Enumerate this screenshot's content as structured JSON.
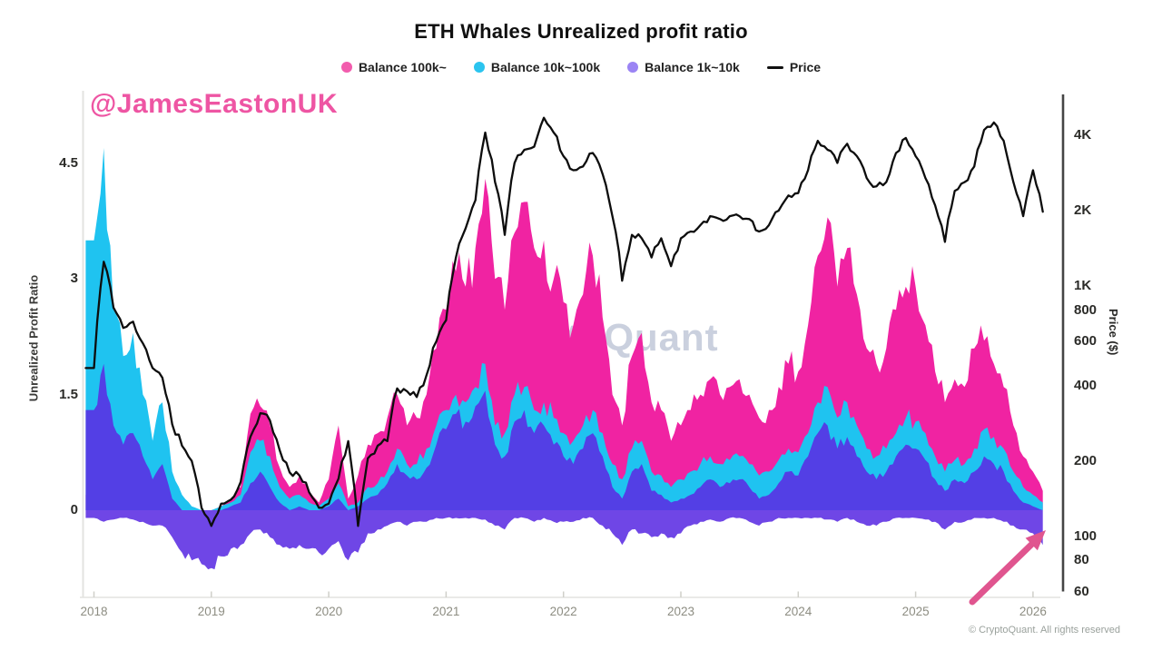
{
  "title": "ETH Whales Unrealized profit ratio",
  "handle": "@JamesEastonUK",
  "watermark": "CryptoQuant",
  "footer": "© CryptoQuant. All rights reserved",
  "legend": [
    {
      "label": "Balance 100k~",
      "color": "#f25cad",
      "marker": "dot"
    },
    {
      "label": "Balance 10k~100k",
      "color": "#2bc4ef",
      "marker": "dot"
    },
    {
      "label": "Balance 1k~10k",
      "color": "#9b84f4",
      "marker": "dot"
    },
    {
      "label": "Price",
      "color": "#111111",
      "marker": "line"
    }
  ],
  "annotation": {
    "shape": "arrow",
    "color": "#e0558f"
  },
  "colors": {
    "background": "#ffffff",
    "axis_light": "#e3e3e0",
    "axis_dark": "#454545",
    "year_tick": "#cfcfc9"
  },
  "chart_data": {
    "type": "area",
    "title": "ETH Whales Unrealized profit ratio",
    "x_start": 2018.0,
    "x_step_years": 0.0833333,
    "x_ticks": [
      2018,
      2019,
      2020,
      2021,
      2022,
      2023,
      2024,
      2025,
      2026
    ],
    "left_axis": {
      "label": "Unrealized Profit Ratio",
      "ticks": [
        0,
        1.5,
        3,
        4.5
      ],
      "range": [
        -1.1,
        5.4
      ]
    },
    "right_axis": {
      "label": "Price ($)",
      "scale": "log",
      "ticks": [
        {
          "v": 60,
          "label": "60"
        },
        {
          "v": 80,
          "label": "80"
        },
        {
          "v": 100,
          "label": "100"
        },
        {
          "v": 200,
          "label": "200"
        },
        {
          "v": 400,
          "label": "400"
        },
        {
          "v": 600,
          "label": "600"
        },
        {
          "v": 800,
          "label": "800"
        },
        {
          "v": 1000,
          "label": "1K"
        },
        {
          "v": 2000,
          "label": "2K"
        },
        {
          "v": 4000,
          "label": "4K"
        }
      ],
      "range": [
        55,
        5600
      ]
    },
    "series": [
      {
        "name": "Balance 100k~",
        "kind": "area",
        "color": "#f023a2",
        "baseline": 0,
        "values": [
          0.2,
          0.5,
          0.45,
          0.35,
          1.1,
          1.5,
          0.6,
          0.35,
          0.15,
          0.05,
          0,
          0,
          0,
          0.05,
          0.15,
          0.3,
          1.25,
          1.35,
          1.1,
          0.55,
          0.3,
          0.45,
          0.25,
          0.1,
          0.4,
          1.1,
          0.15,
          0.45,
          0.85,
          1.0,
          1.2,
          1.5,
          1.1,
          1.2,
          1.5,
          2.1,
          2.6,
          3.1,
          2.9,
          3.4,
          4.3,
          3.0,
          2.6,
          3.6,
          4.0,
          3.4,
          3.5,
          3.0,
          2.7,
          2.4,
          2.8,
          3.3,
          2.5,
          1.5,
          1.1,
          2.0,
          2.3,
          1.4,
          1.3,
          0.9,
          1.1,
          1.3,
          1.5,
          1.7,
          1.5,
          1.6,
          1.7,
          1.5,
          1.2,
          1.3,
          1.6,
          1.9,
          1.8,
          2.4,
          3.3,
          3.8,
          2.9,
          3.4,
          2.8,
          2.1,
          1.9,
          2.1,
          2.6,
          2.9,
          2.9,
          2.4,
          1.8,
          1.4,
          1.7,
          1.6,
          2.1,
          2.2,
          1.9,
          1.6,
          1.1,
          0.7,
          0.5,
          0.25
        ]
      },
      {
        "name": "Balance 10k~100k",
        "kind": "area",
        "color": "#1fc3f0",
        "baseline": 0,
        "values": [
          3.5,
          4.7,
          2.6,
          2.0,
          2.3,
          1.5,
          0.9,
          1.4,
          0.5,
          0.2,
          0.05,
          0,
          0,
          0.05,
          0.1,
          0.2,
          0.75,
          0.9,
          0.7,
          0.3,
          0.15,
          0.2,
          0.1,
          0.05,
          0.15,
          0.35,
          0.05,
          0.1,
          0.3,
          0.35,
          0.5,
          0.8,
          0.6,
          0.6,
          0.8,
          1.1,
          1.3,
          1.5,
          1.4,
          1.6,
          1.9,
          1.1,
          1.0,
          1.5,
          1.6,
          1.3,
          1.4,
          1.2,
          1.0,
          0.9,
          1.1,
          1.3,
          1.0,
          0.6,
          0.4,
          0.8,
          0.9,
          0.5,
          0.45,
          0.3,
          0.4,
          0.5,
          0.6,
          0.7,
          0.6,
          0.65,
          0.7,
          0.6,
          0.45,
          0.5,
          0.65,
          0.8,
          0.75,
          1.0,
          1.4,
          1.6,
          1.2,
          1.4,
          1.1,
          0.8,
          0.7,
          0.8,
          1.0,
          1.2,
          1.15,
          1.0,
          0.7,
          0.5,
          0.65,
          0.6,
          0.8,
          1.05,
          0.95,
          0.8,
          0.5,
          0.3,
          0.2,
          0.1
        ]
      },
      {
        "name": "Balance 1k~10k",
        "kind": "band",
        "color": "#5b2ce2",
        "opacity": 0.88,
        "values": [
          1.3,
          1.9,
          1.1,
          0.85,
          1.0,
          0.7,
          0.4,
          0.6,
          0.15,
          0,
          0,
          0,
          0,
          0,
          0.05,
          0.1,
          0.35,
          0.5,
          0.3,
          0.1,
          0,
          0.05,
          0,
          0,
          0.05,
          0.15,
          0,
          0.05,
          0.15,
          0.2,
          0.35,
          0.6,
          0.45,
          0.4,
          0.55,
          0.85,
          1.05,
          1.25,
          1.15,
          1.35,
          1.55,
          0.85,
          0.7,
          1.15,
          1.3,
          1.0,
          1.1,
          0.85,
          0.7,
          0.6,
          0.8,
          1.0,
          0.7,
          0.3,
          0.15,
          0.5,
          0.6,
          0.25,
          0.2,
          0.1,
          0.15,
          0.2,
          0.3,
          0.4,
          0.3,
          0.35,
          0.4,
          0.3,
          0.15,
          0.2,
          0.35,
          0.5,
          0.45,
          0.7,
          1.0,
          1.1,
          0.8,
          0.95,
          0.7,
          0.5,
          0.4,
          0.5,
          0.7,
          0.85,
          0.8,
          0.65,
          0.4,
          0.25,
          0.4,
          0.35,
          0.5,
          0.7,
          0.6,
          0.5,
          0.25,
          0.1,
          0.05,
          0
        ],
        "values_low": [
          -0.1,
          -0.15,
          -0.12,
          -0.1,
          -0.12,
          -0.15,
          -0.2,
          -0.2,
          -0.35,
          -0.55,
          -0.65,
          -0.7,
          -0.75,
          -0.6,
          -0.5,
          -0.45,
          -0.3,
          -0.25,
          -0.35,
          -0.45,
          -0.5,
          -0.45,
          -0.5,
          -0.55,
          -0.5,
          -0.4,
          -0.65,
          -0.55,
          -0.3,
          -0.25,
          -0.2,
          -0.15,
          -0.2,
          -0.15,
          -0.15,
          -0.1,
          -0.1,
          -0.1,
          -0.1,
          -0.1,
          -0.12,
          -0.2,
          -0.25,
          -0.1,
          -0.1,
          -0.15,
          -0.1,
          -0.15,
          -0.15,
          -0.15,
          -0.1,
          -0.1,
          -0.2,
          -0.3,
          -0.45,
          -0.25,
          -0.3,
          -0.35,
          -0.3,
          -0.35,
          -0.3,
          -0.2,
          -0.15,
          -0.12,
          -0.15,
          -0.1,
          -0.1,
          -0.15,
          -0.2,
          -0.15,
          -0.1,
          -0.1,
          -0.1,
          -0.1,
          -0.1,
          -0.12,
          -0.15,
          -0.1,
          -0.15,
          -0.2,
          -0.2,
          -0.15,
          -0.1,
          -0.1,
          -0.1,
          -0.12,
          -0.15,
          -0.25,
          -0.15,
          -0.15,
          -0.1,
          -0.1,
          -0.1,
          -0.15,
          -0.2,
          -0.25,
          -0.3,
          -0.45
        ]
      },
      {
        "name": "Price",
        "kind": "line",
        "color": "#0d0d0d",
        "axis": "right",
        "values": [
          470,
          1250,
          820,
          680,
          720,
          590,
          470,
          430,
          280,
          230,
          200,
          130,
          110,
          135,
          140,
          165,
          250,
          310,
          290,
          220,
          180,
          175,
          150,
          130,
          135,
          170,
          240,
          110,
          205,
          230,
          240,
          390,
          380,
          360,
          440,
          600,
          730,
          1300,
          1700,
          2200,
          4100,
          2600,
          1600,
          3100,
          3500,
          3600,
          4700,
          4100,
          3300,
          2900,
          3000,
          3400,
          2800,
          1900,
          1050,
          1600,
          1550,
          1300,
          1550,
          1200,
          1550,
          1650,
          1750,
          1900,
          1850,
          1900,
          1900,
          1850,
          1650,
          1750,
          2000,
          2300,
          2350,
          2900,
          3800,
          3500,
          3100,
          3700,
          3300,
          2700,
          2500,
          2600,
          3400,
          3900,
          3300,
          2700,
          2100,
          1500,
          2400,
          2600,
          3000,
          4200,
          4500,
          3800,
          2600,
          1900,
          2900,
          1980
        ]
      }
    ]
  }
}
